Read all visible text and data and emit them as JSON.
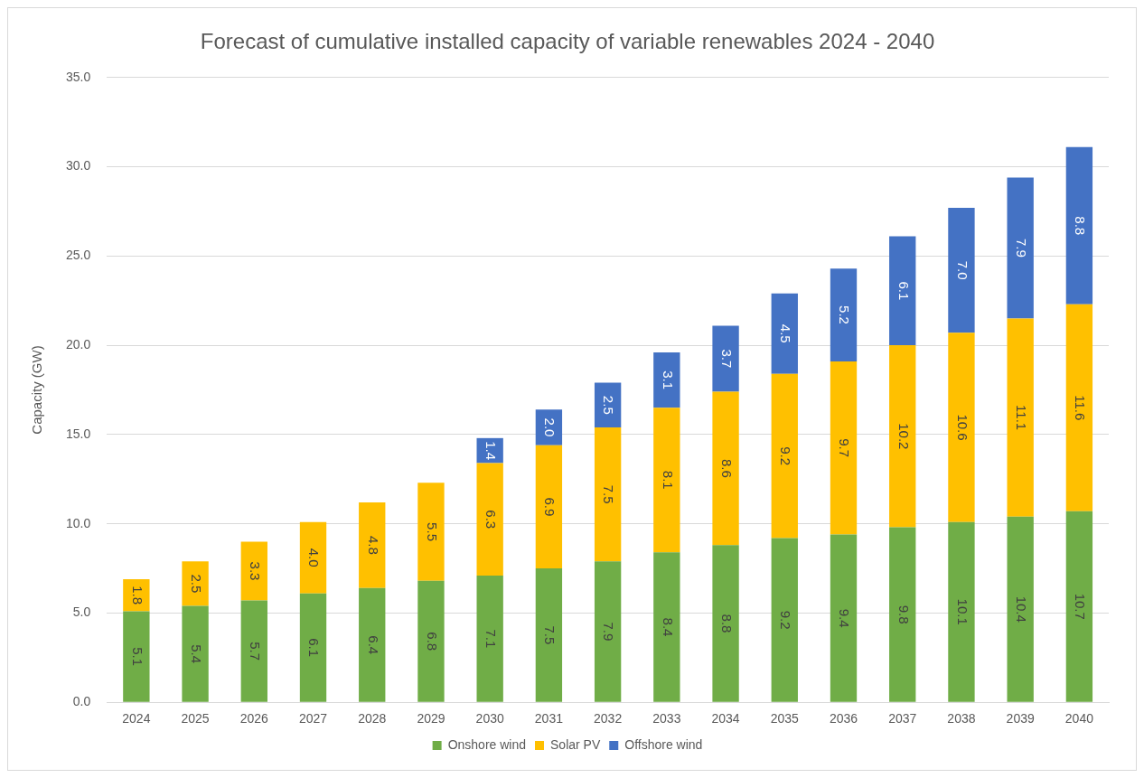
{
  "chart_data": {
    "type": "bar",
    "title": "Forecast of cumulative installed capacity of variable renewables 2024 - 2040",
    "ylabel": "Capacity (GW)",
    "stacked": true,
    "grid": "y",
    "legend": "bottom",
    "categories": [
      "2024",
      "2025",
      "2026",
      "2027",
      "2028",
      "2029",
      "2030",
      "2031",
      "2032",
      "2033",
      "2034",
      "2035",
      "2036",
      "2037",
      "2038",
      "2039",
      "2040"
    ],
    "ylim": [
      0,
      35
    ],
    "yticks": [
      {
        "value": 0,
        "label": "0.0"
      },
      {
        "value": 5,
        "label": "5.0"
      },
      {
        "value": 10,
        "label": "10.0"
      },
      {
        "value": 15,
        "label": "15.0"
      },
      {
        "value": 20,
        "label": "20.0"
      },
      {
        "value": 25,
        "label": "25.0"
      },
      {
        "value": 30,
        "label": "30.0"
      },
      {
        "value": 35,
        "label": "35.0"
      }
    ],
    "series": [
      {
        "name": "Onshore wind",
        "color": "#70ad47",
        "values": [
          5.1,
          5.4,
          5.7,
          6.1,
          6.4,
          6.8,
          7.1,
          7.5,
          7.9,
          8.4,
          8.8,
          9.2,
          9.4,
          9.8,
          10.1,
          10.4,
          10.7
        ],
        "value_labels": [
          "5.1",
          "5.4",
          "5.7",
          "6.1",
          "6.4",
          "6.8",
          "7.1",
          "7.5",
          "7.9",
          "8.4",
          "8.8",
          "9.2",
          "9.4",
          "9.8",
          "10.1",
          "10.4",
          "10.7"
        ]
      },
      {
        "name": "Solar PV",
        "color": "#ffc000",
        "values": [
          1.8,
          2.5,
          3.3,
          4.0,
          4.8,
          5.5,
          6.3,
          6.9,
          7.5,
          8.1,
          8.6,
          9.2,
          9.7,
          10.2,
          10.6,
          11.1,
          11.6
        ],
        "value_labels": [
          "1.8",
          "2.5",
          "3.3",
          "4.0",
          "4.8",
          "5.5",
          "6.3",
          "6.9",
          "7.5",
          "8.1",
          "8.6",
          "9.2",
          "9.7",
          "10.2",
          "10.6",
          "11.1",
          "11.6"
        ]
      },
      {
        "name": "Offshore wind",
        "color": "#4472c4",
        "values": [
          null,
          null,
          null,
          null,
          null,
          null,
          1.4,
          2.0,
          2.5,
          3.1,
          3.7,
          4.5,
          5.2,
          6.1,
          7.0,
          7.9,
          8.8
        ],
        "value_labels": [
          null,
          null,
          null,
          null,
          null,
          null,
          "1.4",
          "2.0",
          "2.5",
          "3.1",
          "3.7",
          "4.5",
          "5.2",
          "6.1",
          "7.0",
          "7.9",
          "8.8"
        ]
      }
    ]
  }
}
